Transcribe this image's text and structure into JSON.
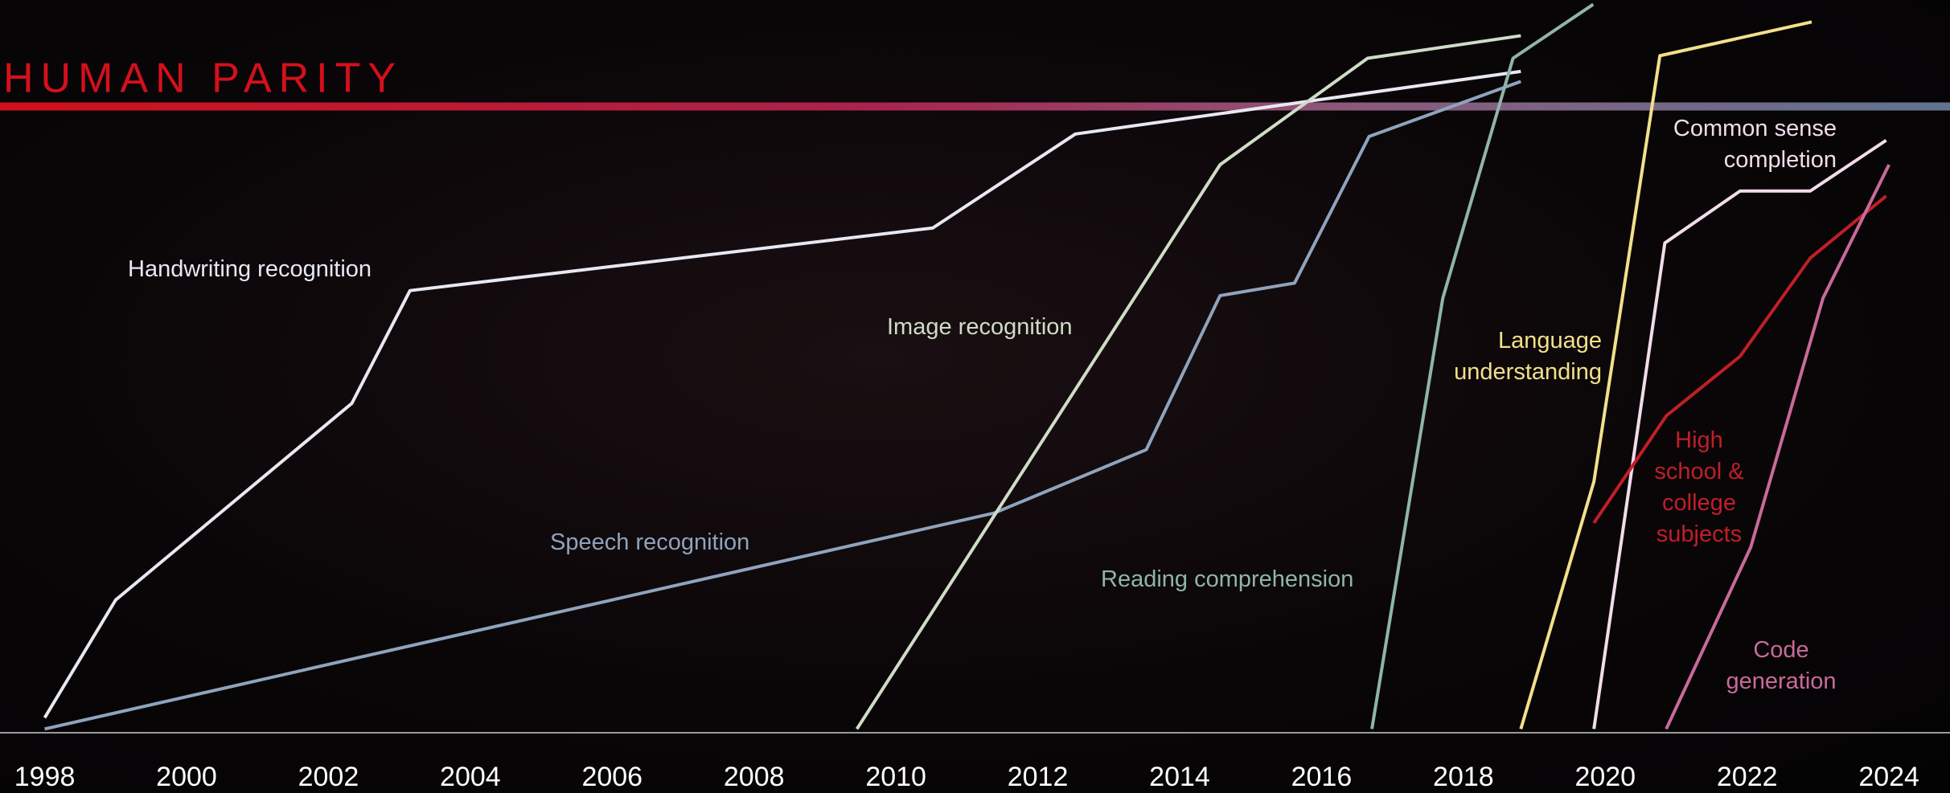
{
  "chart_data": {
    "type": "line",
    "parity": {
      "label": "HUMAN PARITY",
      "value": 0
    },
    "xlim": [
      1997.37,
      2024.86
    ],
    "xticks": [
      1998,
      2000,
      2002,
      2004,
      2006,
      2008,
      2010,
      2012,
      2014,
      2016,
      2018,
      2020,
      2022,
      2024
    ],
    "ylim": [
      -100,
      17
    ],
    "series": [
      {
        "name": "Handwriting recognition",
        "color": "#e8e8f2",
        "x": [
          1998.0,
          1999.0,
          2002.33,
          2003.15,
          2010.52,
          2012.53,
          2018.81
        ],
        "values": [
          -97.6,
          -78.8,
          -47.4,
          -29.4,
          -19.4,
          -4.4,
          5.6
        ]
      },
      {
        "name": "Speech recognition",
        "color": "#8fa3bd",
        "x": [
          1998.0,
          2011.39,
          2013.53,
          2014.57,
          2015.62,
          2016.67,
          2018.81
        ],
        "values": [
          -99.4,
          -64.9,
          -54.8,
          -30.2,
          -28.2,
          -4.8,
          4.0
        ]
      },
      {
        "name": "Image recognition",
        "color": "#cfdcc6",
        "x": [
          2009.45,
          2014.57,
          2016.65,
          2018.81
        ],
        "values": [
          -99.4,
          -9.3,
          7.7,
          11.3
        ]
      },
      {
        "name": "Reading comprehension",
        "color": "#8fb5a8",
        "x": [
          2016.71,
          2017.71,
          2018.7,
          2019.83
        ],
        "values": [
          -99.4,
          -30.6,
          7.7,
          16.3
        ]
      },
      {
        "name": "Language understanding",
        "color": "#f2e08a",
        "x": [
          2018.81,
          2019.84,
          2020.77,
          2022.91
        ],
        "values": [
          -99.4,
          -59.9,
          8.1,
          13.5
        ]
      },
      {
        "name": "Common sense completion",
        "color": "#f2dcea",
        "x": [
          2019.84,
          2020.84,
          2021.9,
          2022.89,
          2023.96
        ],
        "values": [
          -99.4,
          -21.8,
          -13.5,
          -13.5,
          -5.4
        ]
      },
      {
        "name": "High school & college subjects",
        "color": "#c01f27",
        "x": [
          2019.84,
          2020.86,
          2021.9,
          2022.89,
          2023.96
        ],
        "values": [
          -66.5,
          -49.4,
          -39.9,
          -24.2,
          -14.3
        ]
      },
      {
        "name": "Code generation",
        "color": "#c86a9a",
        "x": [
          2020.86,
          2022.05,
          2023.07,
          2024.0
        ],
        "values": [
          -99.4,
          -70.4,
          -30.6,
          -9.3
        ]
      }
    ]
  }
}
